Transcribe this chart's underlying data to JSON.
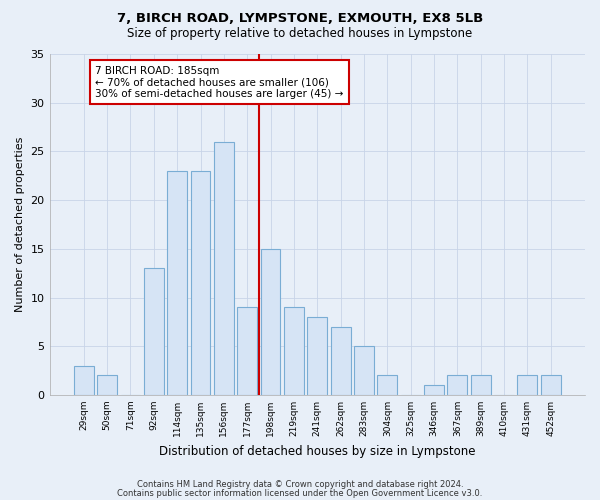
{
  "title": "7, BIRCH ROAD, LYMPSTONE, EXMOUTH, EX8 5LB",
  "subtitle": "Size of property relative to detached houses in Lympstone",
  "xlabel": "Distribution of detached houses by size in Lympstone",
  "ylabel": "Number of detached properties",
  "categories": [
    "29sqm",
    "50sqm",
    "71sqm",
    "92sqm",
    "114sqm",
    "135sqm",
    "156sqm",
    "177sqm",
    "198sqm",
    "219sqm",
    "241sqm",
    "262sqm",
    "283sqm",
    "304sqm",
    "325sqm",
    "346sqm",
    "367sqm",
    "389sqm",
    "410sqm",
    "431sqm",
    "452sqm"
  ],
  "values": [
    3,
    2,
    0,
    13,
    23,
    23,
    26,
    9,
    15,
    9,
    8,
    7,
    5,
    2,
    0,
    1,
    2,
    2,
    0,
    2,
    2
  ],
  "bar_color": "#d6e4f5",
  "bar_edge_color": "#7aadd4",
  "vline_index": 7.5,
  "vline_color": "#cc0000",
  "annotation_text": "7 BIRCH ROAD: 185sqm\n← 70% of detached houses are smaller (106)\n30% of semi-detached houses are larger (45) →",
  "annotation_box_color": "#ffffff",
  "annotation_box_edge": "#cc0000",
  "ylim": [
    0,
    35
  ],
  "yticks": [
    0,
    5,
    10,
    15,
    20,
    25,
    30,
    35
  ],
  "grid_color": "#c8d4e8",
  "background_color": "#e8eff8",
  "footer_line1": "Contains HM Land Registry data © Crown copyright and database right 2024.",
  "footer_line2": "Contains public sector information licensed under the Open Government Licence v3.0."
}
